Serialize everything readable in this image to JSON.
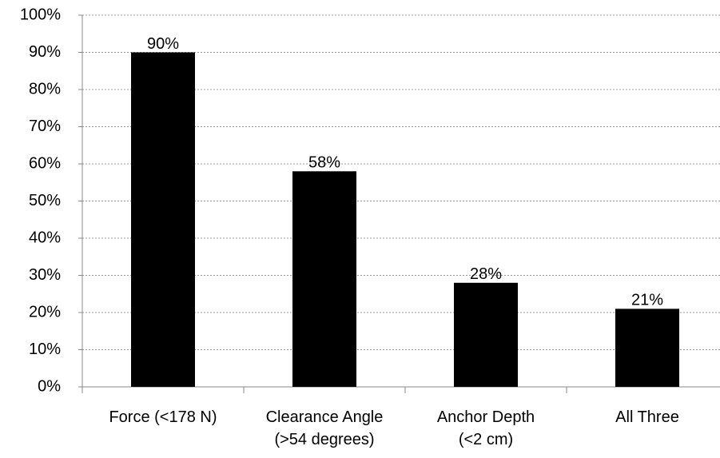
{
  "chart_data": {
    "type": "bar",
    "categories": [
      "Force  (<178 N)",
      "Clearance Angle\n(>54 degrees)",
      "Anchor Depth\n(<2 cm)",
      "All Three"
    ],
    "values": [
      90,
      58,
      28,
      21
    ],
    "value_labels": [
      "90%",
      "58%",
      "28%",
      "21%"
    ],
    "color": "#000000",
    "ylim": [
      0,
      100
    ],
    "yticks": [
      {
        "value": 0,
        "label": "0%"
      },
      {
        "value": 10,
        "label": "10%"
      },
      {
        "value": 20,
        "label": "20%"
      },
      {
        "value": 30,
        "label": "30%"
      },
      {
        "value": 40,
        "label": "40%"
      },
      {
        "value": 50,
        "label": "50%"
      },
      {
        "value": 60,
        "label": "60%"
      },
      {
        "value": 70,
        "label": "70%"
      },
      {
        "value": 80,
        "label": "80%"
      },
      {
        "value": 90,
        "label": "90%"
      },
      {
        "value": 100,
        "label": "100%"
      }
    ],
    "grid": true
  }
}
